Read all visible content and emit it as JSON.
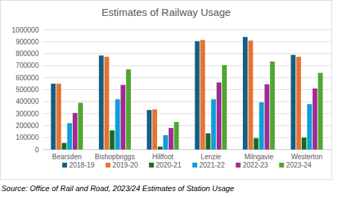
{
  "chart_data": {
    "type": "bar",
    "title": "Estimates of Railway Usage",
    "source": "Source: Office of Rail and Road, 2023/24 Estimates of Station Usage",
    "categories": [
      "Bearsden",
      "Bishopbriggs",
      "Hillfoot",
      "Lenzie",
      "Milngavie",
      "Westerton"
    ],
    "series": [
      {
        "name": "2018-19",
        "color": "#156082",
        "values": [
          550000,
          785000,
          330000,
          905000,
          940000,
          790000
        ]
      },
      {
        "name": "2019-20",
        "color": "#e97132",
        "values": [
          550000,
          775000,
          335000,
          915000,
          910000,
          775000
        ]
      },
      {
        "name": "2020-21",
        "color": "#196b24",
        "values": [
          55000,
          160000,
          25000,
          135000,
          95000,
          100000
        ]
      },
      {
        "name": "2021-22",
        "color": "#0f9ed5",
        "values": [
          220000,
          420000,
          120000,
          420000,
          395000,
          380000
        ]
      },
      {
        "name": "2022-23",
        "color": "#a02b93",
        "values": [
          305000,
          540000,
          180000,
          560000,
          545000,
          510000
        ]
      },
      {
        "name": "2023-24",
        "color": "#4ea72e",
        "values": [
          390000,
          670000,
          230000,
          705000,
          735000,
          640000
        ]
      }
    ],
    "ylim": [
      0,
      1000000
    ],
    "yticks": [
      0,
      100000,
      200000,
      300000,
      400000,
      500000,
      600000,
      700000,
      800000,
      900000,
      1000000
    ],
    "grid": true,
    "legend": "bottom"
  }
}
